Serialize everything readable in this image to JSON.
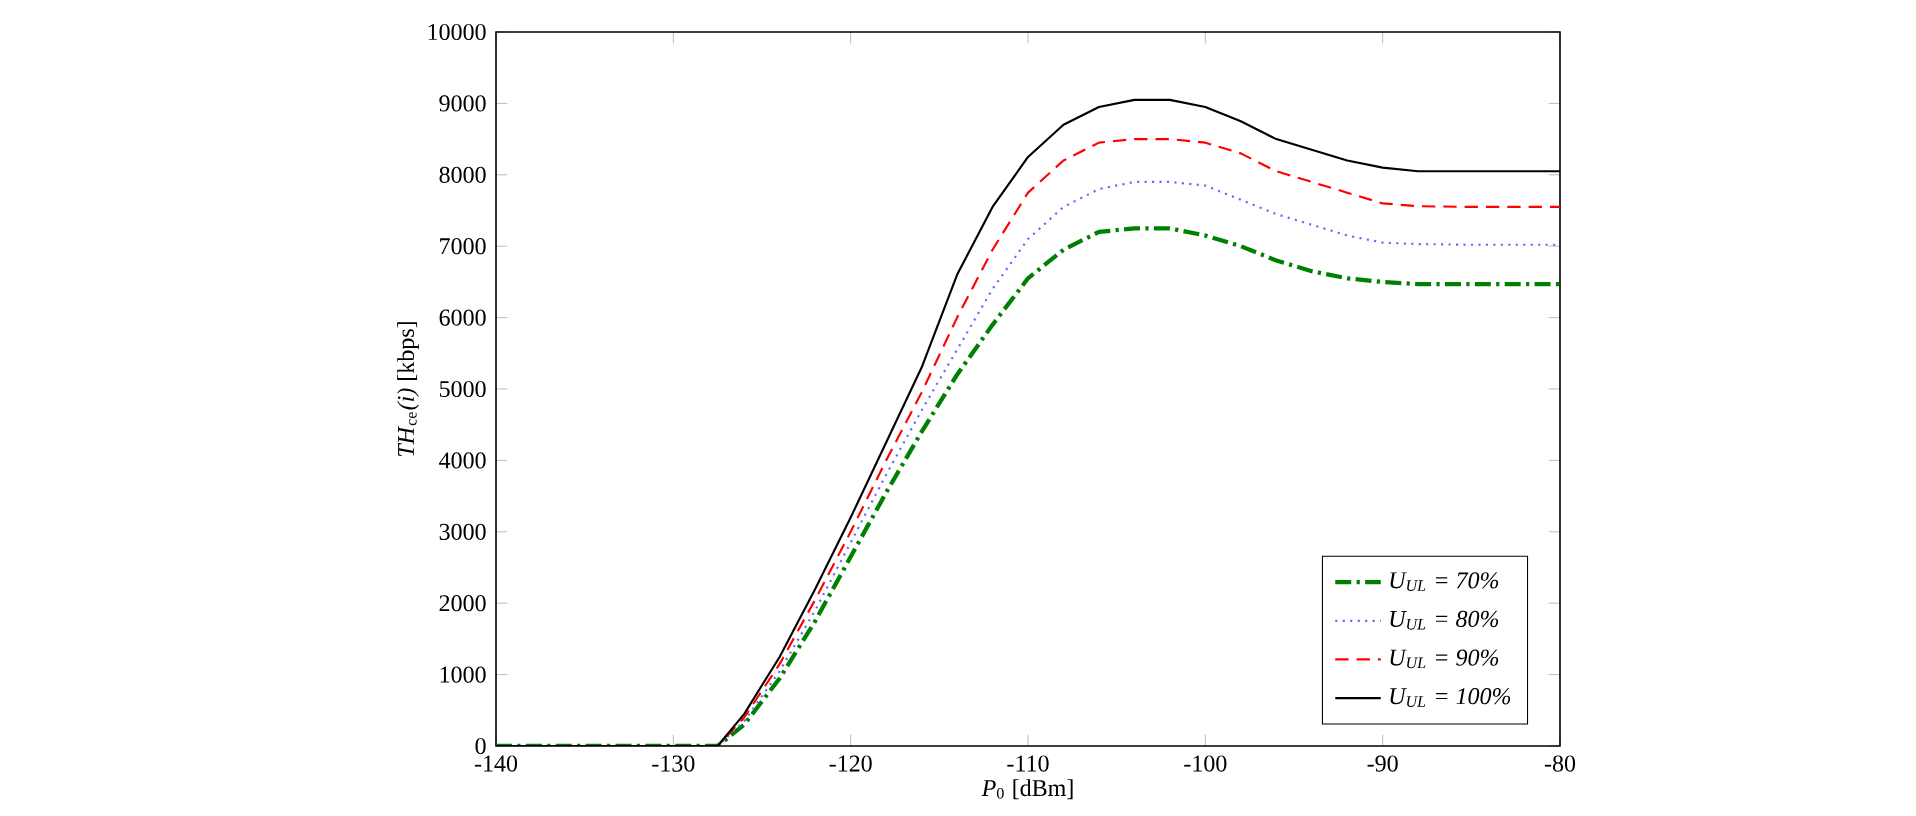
{
  "chart_data": {
    "type": "line",
    "xlabel": "*P*$_{0}$ [dBm]",
    "ylabel": "*TH*$_{ce}$*(i)* [kbps]",
    "x": [
      -140,
      -130,
      -128,
      -127.5,
      -126,
      -124,
      -122,
      -120,
      -118,
      -116,
      -114,
      -112,
      -110,
      -108,
      -106,
      -104,
      -102,
      -100,
      -98,
      -96,
      -94,
      -92,
      -90,
      -88,
      -85,
      -80
    ],
    "series": [
      {
        "name": "U$_{UL}$ = 70%",
        "color": "#008000",
        "line_style": "dashdot",
        "values": [
          0,
          0,
          0,
          0,
          300,
          950,
          1750,
          2650,
          3550,
          4400,
          5200,
          5900,
          6550,
          6950,
          7200,
          7250,
          7250,
          7150,
          7000,
          6800,
          6650,
          6550,
          6500,
          6470,
          6470,
          6470
        ]
      },
      {
        "name": "U$_{UL}$ = 80%",
        "color": "#6666ff",
        "line_style": "dotted",
        "values": [
          null,
          null,
          0,
          0,
          350,
          1050,
          1900,
          2850,
          3800,
          4700,
          5550,
          6400,
          7100,
          7550,
          7800,
          7900,
          7900,
          7850,
          7650,
          7450,
          7300,
          7150,
          7050,
          7030,
          7020,
          7020
        ]
      },
      {
        "name": "U$_{UL}$ = 90%",
        "color": "#ff0000",
        "line_style": "dashed",
        "values": [
          null,
          null,
          0,
          0,
          400,
          1150,
          2050,
          3000,
          4000,
          4950,
          6000,
          6950,
          7750,
          8200,
          8450,
          8500,
          8500,
          8450,
          8300,
          8050,
          7900,
          7750,
          7600,
          7560,
          7550,
          7550
        ]
      },
      {
        "name": "U$_{UL}$ = 100%",
        "color": "#000000",
        "line_style": "solid",
        "values": [
          0,
          0,
          0,
          0,
          450,
          1250,
          2200,
          3200,
          4250,
          5300,
          6600,
          7550,
          8250,
          8700,
          8950,
          9050,
          9050,
          8950,
          8750,
          8500,
          8350,
          8200,
          8100,
          8050,
          8050,
          8050
        ]
      }
    ],
    "xlim": [
      -140,
      -80
    ],
    "ylim": [
      0,
      10000
    ],
    "xticks": [
      -140,
      -130,
      -120,
      -110,
      -100,
      -90,
      -80
    ],
    "yticks": [
      0,
      1000,
      2000,
      3000,
      4000,
      5000,
      6000,
      7000,
      8000,
      9000,
      10000
    ],
    "grid": false,
    "legend": "bottom right"
  }
}
